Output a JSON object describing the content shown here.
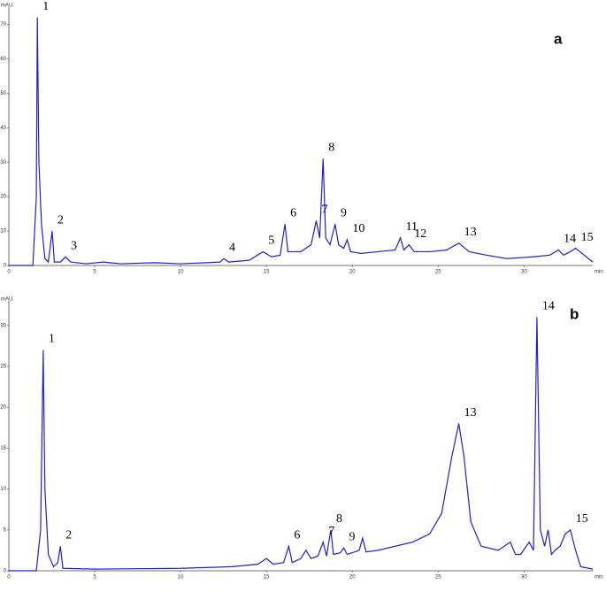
{
  "chart_data": [
    {
      "type": "line",
      "title": "a",
      "x_label": "min",
      "y_label": "mAU",
      "color": "#1f1fd0",
      "xlim": [
        0,
        34
      ],
      "ylim": [
        0,
        75
      ],
      "xticks": [
        0,
        5,
        10,
        15,
        20,
        25,
        30
      ],
      "yticks": [
        0,
        10,
        20,
        30,
        40,
        50,
        60,
        70
      ],
      "x": [
        0,
        1.4,
        1.6,
        1.66,
        1.75,
        1.9,
        2.1,
        2.3,
        2.52,
        2.65,
        3.0,
        3.3,
        3.6,
        4.5,
        5.5,
        6.5,
        8.5,
        10,
        11.5,
        12.3,
        12.52,
        12.8,
        14.0,
        14.8,
        15.3,
        15.8,
        16.08,
        16.25,
        17.0,
        17.6,
        17.9,
        18.1,
        18.3,
        18.45,
        18.7,
        19.0,
        19.2,
        19.5,
        19.7,
        19.9,
        20.5,
        21.5,
        22.5,
        22.8,
        23.0,
        23.3,
        23.6,
        24.5,
        25.5,
        26.2,
        26.8,
        27.8,
        29,
        30.5,
        31.5,
        32.0,
        32.3,
        32.7,
        33.0,
        33.5,
        34
      ],
      "values": [
        0,
        0,
        20,
        72,
        30,
        12,
        2,
        1,
        10,
        1,
        1,
        2.5,
        1,
        0.5,
        1,
        0.5,
        0.8,
        0.5,
        0.8,
        1,
        2,
        1,
        1.5,
        4,
        2.5,
        3,
        12,
        4,
        4,
        6,
        13,
        8,
        31,
        8,
        6,
        12,
        6,
        5,
        7.5,
        4,
        3.5,
        4,
        4.5,
        8,
        4.5,
        6,
        4,
        4,
        4.5,
        6.5,
        4,
        3,
        2,
        2.5,
        3,
        4.5,
        3,
        4,
        5,
        3,
        1
      ],
      "peaks": [
        {
          "label": "1",
          "x": 1.66
        },
        {
          "label": "2",
          "x": 2.52
        },
        {
          "label": "3",
          "x": 3.3
        },
        {
          "label": "4",
          "x": 12.52
        },
        {
          "label": "5",
          "x": 14.8
        },
        {
          "label": "6",
          "x": 16.08
        },
        {
          "label": "7",
          "x": 17.9
        },
        {
          "label": "8",
          "x": 18.3
        },
        {
          "label": "9",
          "x": 19.0
        },
        {
          "label": "10",
          "x": 19.7
        },
        {
          "label": "11",
          "x": 22.8
        },
        {
          "label": "12",
          "x": 23.3
        },
        {
          "label": "13",
          "x": 26.2
        },
        {
          "label": "14",
          "x": 32.0
        },
        {
          "label": "15",
          "x": 33.0
        }
      ]
    },
    {
      "type": "line",
      "title": "b",
      "x_label": "min",
      "y_label": "mAU",
      "color": "#1f1fd0",
      "xlim": [
        0,
        34
      ],
      "ylim": [
        0,
        33
      ],
      "xticks": [
        0,
        5,
        10,
        15,
        20,
        25,
        30
      ],
      "yticks": [
        0,
        5,
        10,
        15,
        20,
        25,
        30
      ],
      "x": [
        0,
        1.6,
        1.85,
        2.0,
        2.1,
        2.3,
        2.6,
        2.85,
        3.0,
        3.15,
        5,
        10,
        13,
        14.5,
        15.0,
        15.4,
        16.0,
        16.3,
        16.5,
        17.0,
        17.3,
        17.6,
        18.0,
        18.3,
        18.5,
        18.75,
        18.9,
        19.3,
        19.5,
        19.7,
        20.4,
        20.6,
        20.8,
        21.5,
        22.5,
        23.5,
        24.5,
        25.2,
        25.8,
        26.2,
        26.5,
        26.9,
        27.5,
        28.5,
        29.2,
        29.5,
        29.8,
        30.3,
        30.55,
        30.75,
        30.95,
        31.2,
        31.4,
        31.6,
        31.8,
        32.1,
        32.4,
        32.7,
        33.0,
        33.3,
        34
      ],
      "values": [
        0,
        0,
        5,
        27,
        10,
        2,
        0.5,
        1,
        3,
        0.3,
        0.2,
        0.3,
        0.5,
        0.8,
        1.5,
        0.8,
        1,
        3,
        1,
        1.5,
        2.5,
        1.5,
        1.8,
        3.5,
        1.8,
        5,
        2,
        2.2,
        2.8,
        2,
        2.5,
        4,
        2.3,
        2.5,
        3,
        3.5,
        4.5,
        7,
        14,
        18,
        14,
        6,
        3,
        2.5,
        3.5,
        2,
        2,
        3.5,
        2.5,
        31,
        5,
        3,
        5,
        2,
        2.5,
        3,
        4.5,
        5,
        2.5,
        0.5,
        0.2
      ],
      "peaks": [
        {
          "label": "1",
          "x": 2.0
        },
        {
          "label": "2",
          "x": 3.0
        },
        {
          "label": "6",
          "x": 16.3
        },
        {
          "label": "7",
          "x": 18.3
        },
        {
          "label": "8",
          "x": 18.75
        },
        {
          "label": "9",
          "x": 19.5
        },
        {
          "label": "13",
          "x": 26.2
        },
        {
          "label": "14",
          "x": 30.75
        },
        {
          "label": "15",
          "x": 32.7
        }
      ]
    }
  ]
}
